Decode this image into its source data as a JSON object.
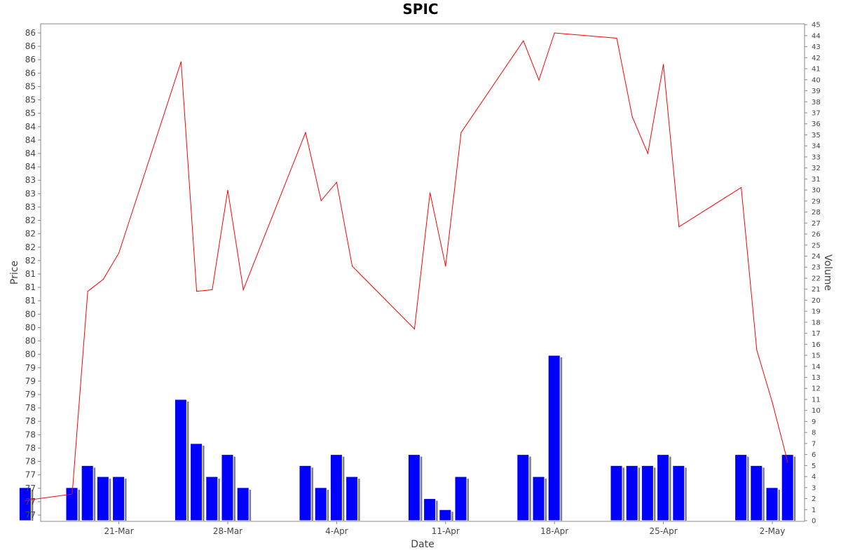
{
  "chart_data": {
    "type": "bar+line",
    "title": "SPIC",
    "xlabel": "Date",
    "ylabel_left": "Price",
    "ylabel_right": "Volume",
    "x_ticks": [
      "21-Mar",
      "28-Mar",
      "4-Apr",
      "11-Apr",
      "18-Apr",
      "25-Apr",
      "2-May"
    ],
    "price_tick_labels": [
      "77",
      "77",
      "77",
      "77",
      "78",
      "78",
      "78",
      "78",
      "78",
      "79",
      "79",
      "79",
      "80",
      "80",
      "80",
      "80",
      "81",
      "81",
      "81",
      "82",
      "82",
      "82",
      "82",
      "83",
      "83",
      "83",
      "84",
      "84",
      "84",
      "84",
      "85",
      "85",
      "85",
      "86",
      "86",
      "86",
      "86"
    ],
    "volume_axis": {
      "min": 0,
      "max": 45,
      "step": 1
    },
    "price_axis": {
      "min": 76.95,
      "max": 86.15
    },
    "colors": {
      "bar": "#0000ff",
      "bar_shadow": "#808080",
      "line": "#ff0000",
      "grid": "none"
    },
    "trading_days": [
      {
        "date": "2024-03-15",
        "price": 77.23,
        "volume": 3
      },
      {
        "date": "2024-03-18",
        "price": 77.35,
        "volume": 3
      },
      {
        "date": "2024-03-19",
        "price": 81.22,
        "volume": 5
      },
      {
        "date": "2024-03-20",
        "price": 81.45,
        "volume": 4
      },
      {
        "date": "2024-03-21",
        "price": 81.95,
        "volume": 4
      },
      {
        "date": "2024-03-25",
        "price": 85.6,
        "volume": 11
      },
      {
        "date": "2024-03-26",
        "price": 81.22,
        "volume": 7
      },
      {
        "date": "2024-03-27",
        "price": 81.25,
        "volume": 4
      },
      {
        "date": "2024-03-28",
        "price": 83.15,
        "volume": 6
      },
      {
        "date": "2024-03-29",
        "price": 81.25,
        "volume": 3
      },
      {
        "date": "2024-04-02",
        "price": 84.25,
        "volume": 5
      },
      {
        "date": "2024-04-03",
        "price": 82.95,
        "volume": 3
      },
      {
        "date": "2024-04-04",
        "price": 83.3,
        "volume": 6
      },
      {
        "date": "2024-04-05",
        "price": 81.7,
        "volume": 4
      },
      {
        "date": "2024-04-09",
        "price": 80.5,
        "volume": 6
      },
      {
        "date": "2024-04-10",
        "price": 83.1,
        "volume": 2
      },
      {
        "date": "2024-04-11",
        "price": 81.7,
        "volume": 1
      },
      {
        "date": "2024-04-12",
        "price": 84.25,
        "volume": 4
      },
      {
        "date": "2024-04-16",
        "price": 86.0,
        "volume": 6
      },
      {
        "date": "2024-04-17",
        "price": 85.25,
        "volume": 4
      },
      {
        "date": "2024-04-18",
        "price": 86.15,
        "volume": 15
      },
      {
        "date": "2024-04-22",
        "price": 86.05,
        "volume": 5
      },
      {
        "date": "2024-04-23",
        "price": 84.55,
        "volume": 5
      },
      {
        "date": "2024-04-24",
        "price": 83.85,
        "volume": 5
      },
      {
        "date": "2024-04-25",
        "price": 85.55,
        "volume": 6
      },
      {
        "date": "2024-04-26",
        "price": 82.45,
        "volume": 5
      },
      {
        "date": "2024-04-30",
        "price": 83.2,
        "volume": 6
      },
      {
        "date": "2024-05-01",
        "price": 80.1,
        "volume": 5
      },
      {
        "date": "2024-05-02",
        "price": 79.1,
        "volume": 3
      },
      {
        "date": "2024-05-03",
        "price": 77.95,
        "volume": 6
      }
    ]
  }
}
